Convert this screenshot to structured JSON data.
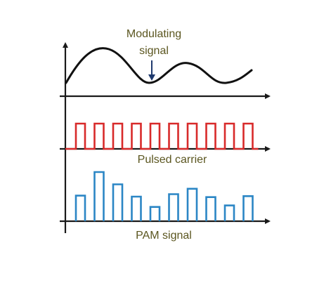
{
  "labels": {
    "modulating_line1": "Modulating",
    "modulating_line2": "signal",
    "pulsed_carrier": "Pulsed carrier",
    "pam_signal": "PAM signal"
  },
  "colors": {
    "axis": "#1a1a1a",
    "modulating_wave": "#111111",
    "pointer_arrow": "#1f3a6e",
    "carrier": "#d82a2a",
    "pam": "#2b86c5",
    "label_text": "#5b5620"
  },
  "pulsed_carrier": {
    "pulse_count": 10
  },
  "pam_signal": {
    "pulse_count": 10,
    "relative_amplitudes": [
      0.52,
      1.0,
      0.75,
      0.5,
      0.29,
      0.55,
      0.66,
      0.49,
      0.32,
      0.51
    ]
  }
}
